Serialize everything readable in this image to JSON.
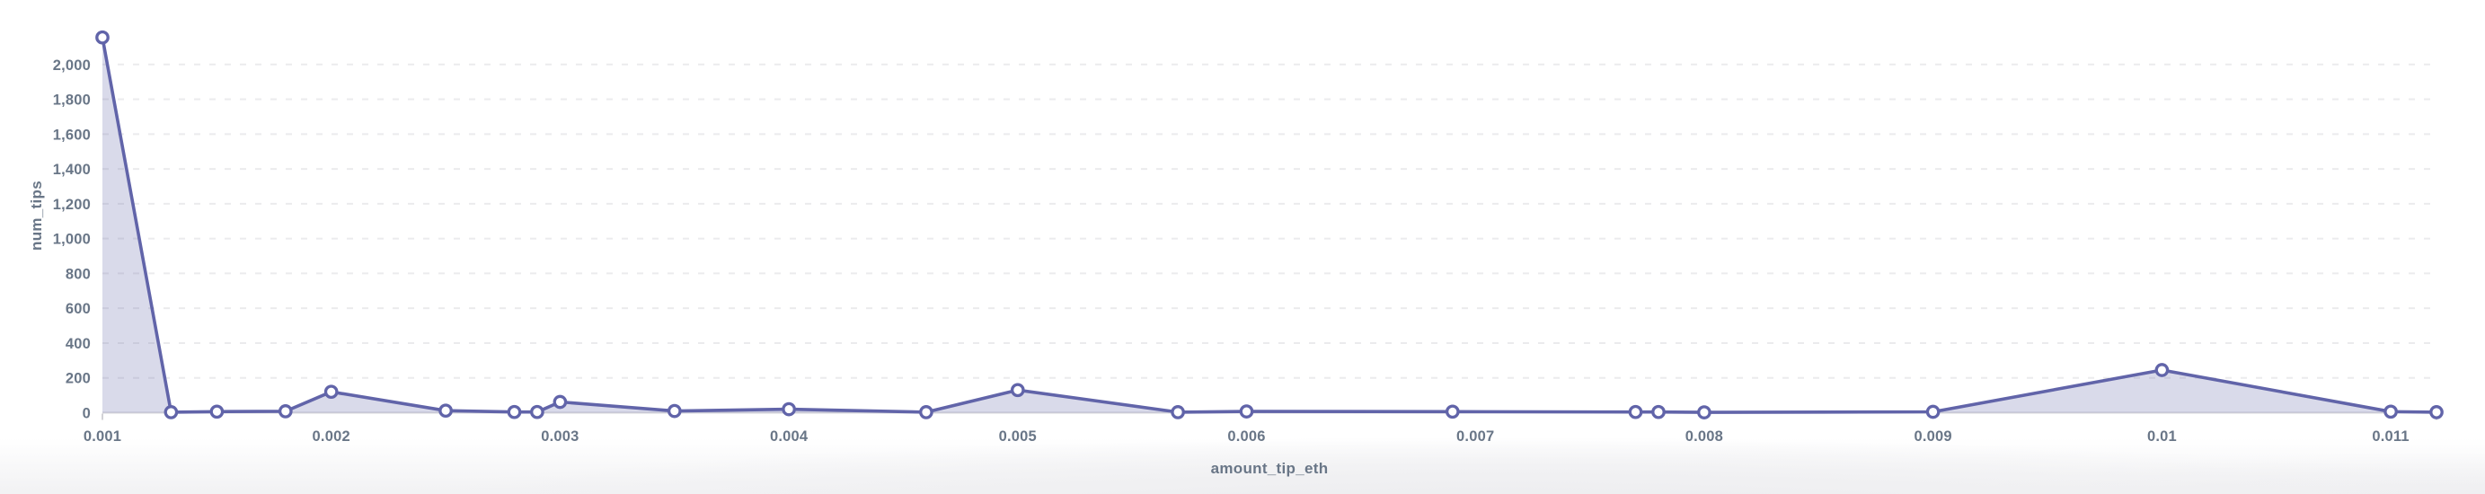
{
  "chart_data": {
    "type": "area",
    "title": "",
    "xlabel": "amount_tip_eth",
    "ylabel": "num_tips",
    "xlim": [
      0.001,
      0.0112
    ],
    "ylim": [
      0,
      2200
    ],
    "grid": "horizontal-dashed",
    "legend": "none",
    "x_ticks": [
      {
        "value": 0.001,
        "label": "0.001"
      },
      {
        "value": 0.002,
        "label": "0.002"
      },
      {
        "value": 0.003,
        "label": "0.003"
      },
      {
        "value": 0.004,
        "label": "0.004"
      },
      {
        "value": 0.005,
        "label": "0.005"
      },
      {
        "value": 0.006,
        "label": "0.006"
      },
      {
        "value": 0.007,
        "label": "0.007"
      },
      {
        "value": 0.008,
        "label": "0.008"
      },
      {
        "value": 0.009,
        "label": "0.009"
      },
      {
        "value": 0.01,
        "label": "0.01"
      },
      {
        "value": 0.011,
        "label": "0.011"
      }
    ],
    "y_ticks": [
      {
        "value": 0,
        "label": "0"
      },
      {
        "value": 200,
        "label": "200"
      },
      {
        "value": 400,
        "label": "400"
      },
      {
        "value": 600,
        "label": "600"
      },
      {
        "value": 800,
        "label": "800"
      },
      {
        "value": 1000,
        "label": "1,000"
      },
      {
        "value": 1200,
        "label": "1,200"
      },
      {
        "value": 1400,
        "label": "1,400"
      },
      {
        "value": 1600,
        "label": "1,600"
      },
      {
        "value": 1800,
        "label": "1,800"
      },
      {
        "value": 2000,
        "label": "2,000"
      }
    ],
    "series": [
      {
        "name": "num_tips",
        "points": [
          [
            0.001,
            2155
          ],
          [
            0.0013,
            3
          ],
          [
            0.0015,
            6
          ],
          [
            0.0018,
            8
          ],
          [
            0.002,
            120
          ],
          [
            0.0025,
            12
          ],
          [
            0.0028,
            4
          ],
          [
            0.0029,
            4
          ],
          [
            0.003,
            62
          ],
          [
            0.0035,
            10
          ],
          [
            0.004,
            20
          ],
          [
            0.0046,
            3
          ],
          [
            0.005,
            130
          ],
          [
            0.0057,
            3
          ],
          [
            0.006,
            7
          ],
          [
            0.0069,
            6
          ],
          [
            0.0077,
            4
          ],
          [
            0.0078,
            4
          ],
          [
            0.008,
            2
          ],
          [
            0.009,
            5
          ],
          [
            0.01,
            245
          ],
          [
            0.011,
            6
          ],
          [
            0.0112,
            3
          ]
        ]
      }
    ],
    "colors": {
      "line": "#6164a9",
      "area_fill": "#6164a9",
      "area_fill_opacity": 0.24,
      "marker_fill": "#ffffff",
      "gridline": "#ebebed",
      "axis_line": "#d8d8dd",
      "end_tick": "#c6c6cc",
      "tick_text": "#697687"
    }
  }
}
